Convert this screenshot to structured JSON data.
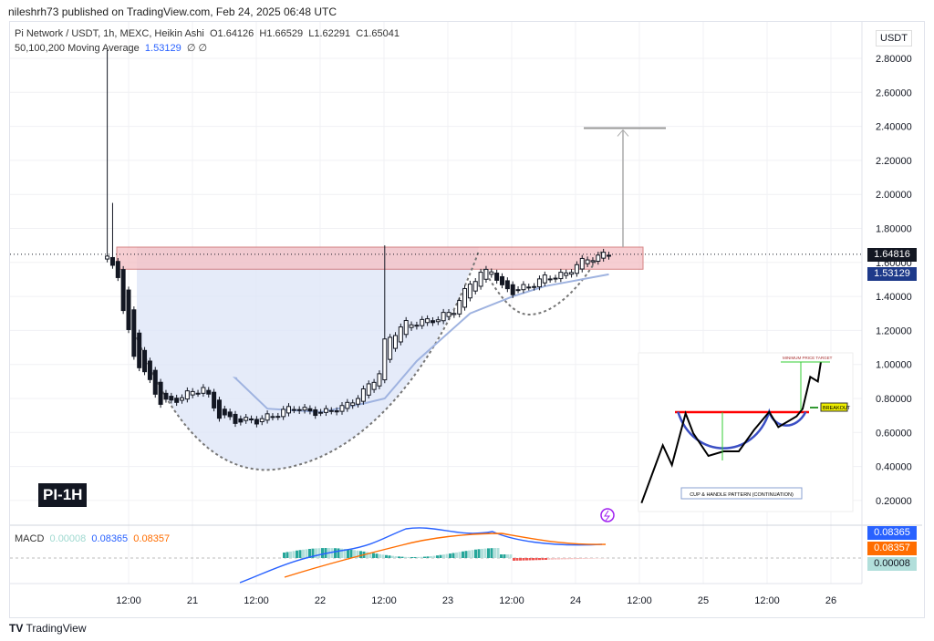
{
  "header": {
    "published": "nileshrh73 published on TradingView.com, Feb 24, 2025 06:48 UTC"
  },
  "legend": {
    "symbol": "Pi Network / USDT, 1h, MEXC, Heikin Ashi",
    "open": "O1.64126",
    "high": "H1.66529",
    "low": "L1.62291",
    "close": "C1.65041",
    "ma_label": "50,100,200 Moving Average",
    "ma_value": "1.53129",
    "ma_extra": "∅ ∅"
  },
  "currency": "USDT",
  "badge": "PI-1H",
  "price_tags": {
    "last": "1.64816",
    "ma": "1.53129"
  },
  "macd": {
    "label": "MACD",
    "hist": "0.00008",
    "macd": "0.08365",
    "signal": "0.08357"
  },
  "colors": {
    "up": "#26a69a",
    "down": "#ef5350",
    "ma": "#9fb3e0",
    "macd": "#2962ff",
    "signal": "#ff6d00",
    "resistance": "#f4c2c7"
  },
  "footer": {
    "logo": "TradingView"
  },
  "inset": {
    "target_label": "MINIMUM PRICE TARGET",
    "breakout_label": "BREAKOUT",
    "caption": "CUP & HANDLE PATTERN (CONTINUATION)"
  },
  "chart_data": {
    "type": "candlestick",
    "style": "Heikin Ashi",
    "y_ticks": [
      "2.80000",
      "2.60000",
      "2.40000",
      "2.20000",
      "2.00000",
      "1.80000",
      "1.60000",
      "1.40000",
      "1.20000",
      "1.00000",
      "0.80000",
      "0.60000",
      "0.40000",
      "0.20000"
    ],
    "ylim": [
      0.2,
      2.8
    ],
    "x_ticks": [
      "12:00",
      "21",
      "12:00",
      "22",
      "12:00",
      "23",
      "12:00",
      "24",
      "12:00",
      "25",
      "12:00",
      "26"
    ],
    "closes": [
      [
        "20 08:00",
        1.62
      ],
      [
        "20 10:00",
        1.53
      ],
      [
        "20 11:00",
        1.32
      ],
      [
        "20 13:00",
        1.05
      ],
      [
        "20 15:00",
        0.95
      ],
      [
        "20 18:00",
        0.78
      ],
      [
        "20 20:00",
        0.78
      ],
      [
        "21 00:00",
        0.84
      ],
      [
        "21 02:00",
        0.86
      ],
      [
        "21 05:00",
        0.7
      ],
      [
        "21 08:00",
        0.67
      ],
      [
        "21 12:00",
        0.67
      ],
      [
        "21 15:00",
        0.7
      ],
      [
        "21 19:00",
        0.75
      ],
      [
        "21 22:00",
        0.72
      ],
      [
        "22 01:00",
        0.72
      ],
      [
        "22 05:00",
        0.76
      ],
      [
        "22 08:00",
        0.84
      ],
      [
        "22 11:00",
        0.95
      ],
      [
        "22 12:00",
        1.13
      ],
      [
        "22 14:00",
        1.19
      ],
      [
        "22 16:00",
        1.24
      ],
      [
        "22 19:00",
        1.25
      ],
      [
        "22 22:00",
        1.27
      ],
      [
        "23 01:00",
        1.32
      ],
      [
        "23 04:00",
        1.48
      ],
      [
        "23 06:00",
        1.53
      ],
      [
        "23 08:00",
        1.56
      ],
      [
        "23 10:00",
        1.45
      ],
      [
        "23 12:00",
        1.43
      ],
      [
        "23 15:00",
        1.46
      ],
      [
        "23 18:00",
        1.51
      ],
      [
        "23 22:00",
        1.53
      ],
      [
        "24 00:00",
        1.59
      ],
      [
        "24 03:00",
        1.63
      ],
      [
        "24 06:00",
        1.648
      ]
    ],
    "spikes": [
      [
        "20 08:00",
        2.85
      ],
      [
        "20 09:00",
        1.95
      ],
      [
        "22 12:00",
        1.7
      ]
    ],
    "moving_average": [
      [
        "21 08:00",
        0.92
      ],
      [
        "21 14:00",
        0.74
      ],
      [
        "22 00:00",
        0.72
      ],
      [
        "22 08:00",
        0.77
      ],
      [
        "22 12:00",
        0.8
      ],
      [
        "22 18:00",
        1.02
      ],
      [
        "23 04:00",
        1.3
      ],
      [
        "23 12:00",
        1.4
      ],
      [
        "23 18:00",
        1.46
      ],
      [
        "24 06:00",
        1.53
      ]
    ],
    "resistance_zone": [
      1.56,
      1.69
    ],
    "target": 2.39,
    "last_price": 1.64816
  }
}
